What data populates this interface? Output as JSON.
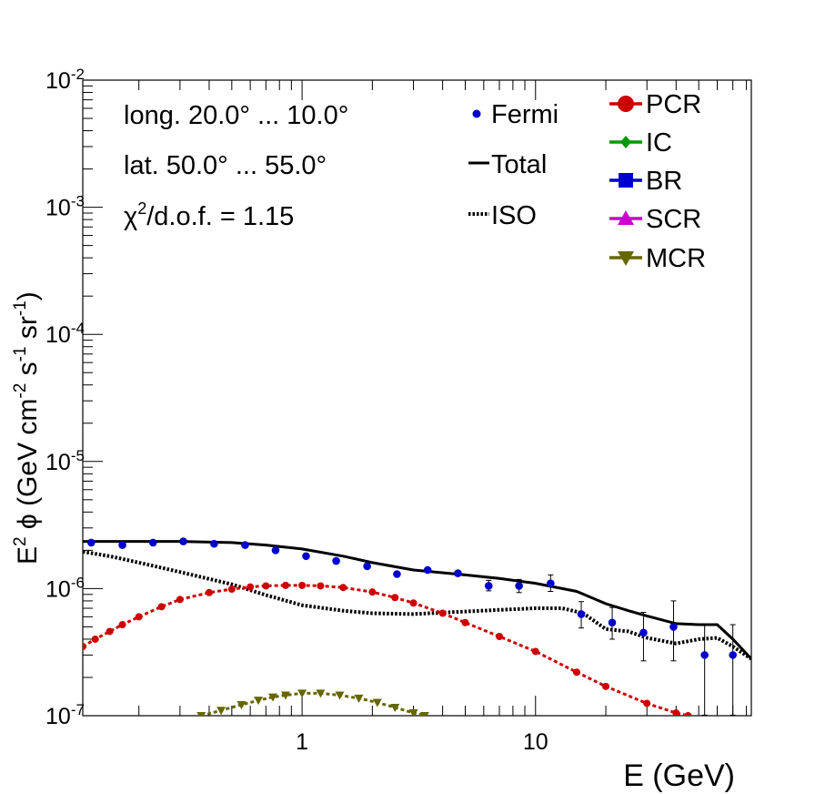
{
  "chart_data": {
    "type": "line",
    "xscale": "log",
    "yscale": "log",
    "xlim": [
      0.115,
      84
    ],
    "ylim": [
      1e-07,
      0.01
    ],
    "xlabel": "E (GeV)",
    "ylabel_parts": {
      "e": "E",
      "e_exp": "2",
      "phi": " ϕ (GeV cm",
      "cm_exp": "-2",
      "s": " s",
      "s_exp": "-1",
      "sr": " sr",
      "sr_exp": "-1",
      "close": ")"
    },
    "x_ticklabels": [
      {
        "value": 1,
        "label": "1"
      },
      {
        "value": 10,
        "label": "10"
      }
    ],
    "y_ticklabels": [
      {
        "value": 1e-07,
        "base": "10",
        "exp": "-7"
      },
      {
        "value": 1e-06,
        "base": "10",
        "exp": "-6"
      },
      {
        "value": 1e-05,
        "base": "10",
        "exp": "-5"
      },
      {
        "value": 0.0001,
        "base": "10",
        "exp": "-4"
      },
      {
        "value": 0.001,
        "base": "10",
        "exp": "-3"
      },
      {
        "value": 0.01,
        "base": "10",
        "exp": "-2"
      }
    ],
    "annotations": {
      "longitude": "long. 20.0° ... 10.0°",
      "latitude": "lat. 50.0° ... 55.0°",
      "chi_symbol": "χ",
      "chi_exp": "2",
      "chi_rest": "/d.o.f. = 1.15"
    },
    "legend_left": {
      "fermi": "Fermi",
      "total": "Total",
      "iso": "ISO"
    },
    "legend_right": {
      "pcr": "PCR",
      "ic": "IC",
      "br": "BR",
      "scr": "SCR",
      "mcr": "MCR"
    },
    "colors": {
      "fermi": "#0000cc",
      "total": "#000000",
      "iso": "#000000",
      "pcr": "#cc0000",
      "ic": "#009900",
      "br": "#0000cc",
      "scr": "#cc00cc",
      "mcr": "#666600"
    },
    "series": [
      {
        "name": "Fermi",
        "style": "points",
        "x": [
          0.125,
          0.17,
          0.23,
          0.31,
          0.42,
          0.57,
          0.77,
          1.04,
          1.4,
          1.9,
          2.55,
          3.45,
          4.65,
          6.3,
          8.5,
          11.6,
          15.7,
          21.3,
          29,
          39,
          53,
          70
        ],
        "y": [
          2.3e-06,
          2.2e-06,
          2.3e-06,
          2.35e-06,
          2.25e-06,
          2.2e-06,
          2e-06,
          1.8e-06,
          1.65e-06,
          1.5e-06,
          1.3e-06,
          1.4e-06,
          1.32e-06,
          1.05e-06,
          1.05e-06,
          1.1e-06,
          6.3e-07,
          5.4e-07,
          4.5e-07,
          5e-07,
          3e-07,
          3e-07
        ],
        "err_lo": [
          0,
          0,
          0,
          0,
          0,
          0,
          0,
          0,
          0,
          0,
          0,
          0,
          0,
          9e-08,
          1.2e-07,
          1.5e-07,
          1.4e-07,
          1.4e-07,
          1.8e-07,
          2.3e-07,
          2e-07,
          2e-07
        ],
        "err_hi": [
          0,
          0,
          0,
          0,
          0,
          0,
          0,
          0,
          0,
          0,
          0,
          0,
          0,
          1.1e-07,
          1.3e-07,
          1.8e-07,
          1.6e-07,
          1.7e-07,
          2e-07,
          3e-07,
          2.2e-07,
          2.2e-07
        ]
      },
      {
        "name": "Total",
        "style": "solid",
        "x": [
          0.115,
          0.2,
          0.3,
          0.5,
          0.7,
          1.0,
          1.5,
          2.0,
          3.0,
          5.0,
          7.0,
          10,
          15,
          20,
          25,
          30,
          40,
          50,
          60,
          70,
          84
        ],
        "y": [
          2.35e-06,
          2.35e-06,
          2.35e-06,
          2.3e-06,
          2.2e-06,
          2.05e-06,
          1.8e-06,
          1.6e-06,
          1.4e-06,
          1.28e-06,
          1.2e-06,
          1.1e-06,
          9.5e-07,
          7.6e-07,
          6.7e-07,
          6.1e-07,
          5.3e-07,
          5.2e-07,
          5.2e-07,
          4e-07,
          2.8e-07
        ]
      },
      {
        "name": "ISO",
        "style": "dotted",
        "x": [
          0.115,
          0.15,
          0.2,
          0.3,
          0.5,
          0.7,
          1.0,
          1.5,
          2.0,
          3.0,
          5.0,
          7.0,
          10,
          13,
          16,
          20,
          25,
          30,
          40,
          50,
          60,
          70,
          84
        ],
        "y": [
          1.95e-06,
          1.8e-06,
          1.6e-06,
          1.35e-06,
          1.08e-06,
          8.9e-07,
          7.4e-07,
          6.7e-07,
          6.4e-07,
          6.3e-07,
          6.6e-07,
          6.8e-07,
          7e-07,
          7e-07,
          6.4e-07,
          4.8e-07,
          4.6e-07,
          4.1e-07,
          3.7e-07,
          4e-07,
          4.1e-07,
          3.5e-07,
          2.8e-07
        ]
      },
      {
        "name": "PCR",
        "style": "dashed-markers",
        "x": [
          0.115,
          0.13,
          0.15,
          0.17,
          0.2,
          0.25,
          0.3,
          0.4,
          0.5,
          0.6,
          0.7,
          0.85,
          1.0,
          1.2,
          1.5,
          2.0,
          2.5,
          3.0,
          4.0,
          5.0,
          7.0,
          10,
          15,
          20,
          30,
          40,
          45
        ],
        "y": [
          3.5e-07,
          4e-07,
          4.6e-07,
          5.2e-07,
          6e-07,
          7.2e-07,
          8.2e-07,
          9.3e-07,
          9.9e-07,
          1.03e-06,
          1.05e-06,
          1.06e-06,
          1.06e-06,
          1.05e-06,
          1.02e-06,
          9.4e-07,
          8.5e-07,
          7.7e-07,
          6.4e-07,
          5.4e-07,
          4.2e-07,
          3.2e-07,
          2.2e-07,
          1.7e-07,
          1.25e-07,
          1.05e-07,
          1e-07
        ]
      },
      {
        "name": "MCR",
        "style": "dashed-markers",
        "x": [
          0.37,
          0.45,
          0.55,
          0.65,
          0.75,
          0.85,
          1.0,
          1.2,
          1.45,
          1.75,
          2.1,
          2.5,
          3.0,
          3.35
        ],
        "y": [
          1e-07,
          1.1e-07,
          1.22e-07,
          1.32e-07,
          1.4e-07,
          1.45e-07,
          1.5e-07,
          1.5e-07,
          1.45e-07,
          1.37e-07,
          1.27e-07,
          1.16e-07,
          1.05e-07,
          1e-07
        ]
      }
    ]
  }
}
